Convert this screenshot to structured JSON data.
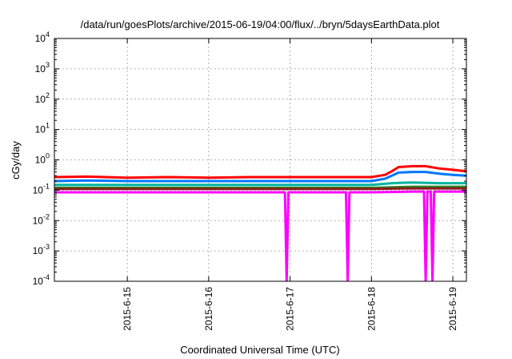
{
  "chart_data": {
    "type": "line",
    "title": "/data/run/goesPlots/archive/2015-06-19/04:00/flux/../bryn/5daysEarthData.plot",
    "xlabel": "Coordinated Universal Time (UTC)",
    "ylabel": "cGy/day",
    "yscale": "log",
    "ylim": [
      0.0001,
      10000
    ],
    "xlim": [
      "2015-06-14T02:30",
      "2015-06-19T04:00"
    ],
    "grid": true,
    "x_ticks": [
      "2015-6-15",
      "2015-6-16",
      "2015-6-17",
      "2015-6-18",
      "2015-6-19"
    ],
    "y_ticks": [
      {
        "base": "10",
        "exp": "-4",
        "value": 0.0001
      },
      {
        "base": "10",
        "exp": "-3",
        "value": 0.001
      },
      {
        "base": "10",
        "exp": "-2",
        "value": 0.01
      },
      {
        "base": "10",
        "exp": "-1",
        "value": 0.1
      },
      {
        "base": "10",
        "exp": "0",
        "value": 1
      },
      {
        "base": "10",
        "exp": "1",
        "value": 10
      },
      {
        "base": "10",
        "exp": "2",
        "value": 100
      },
      {
        "base": "10",
        "exp": "3",
        "value": 1000
      },
      {
        "base": "10",
        "exp": "4",
        "value": 10000
      }
    ],
    "series": [
      {
        "color": "#ff0000",
        "x": [
          "2015-06-14T02:30",
          "2015-06-14T12:00",
          "2015-06-15T00:00",
          "2015-06-15T12:00",
          "2015-06-16T00:00",
          "2015-06-16T12:00",
          "2015-06-17T00:00",
          "2015-06-17T12:00",
          "2015-06-18T00:00",
          "2015-06-18T04:00",
          "2015-06-18T06:00",
          "2015-06-18T08:00",
          "2015-06-18T12:00",
          "2015-06-18T16:00",
          "2015-06-18T20:00",
          "2015-06-19T00:00",
          "2015-06-19T04:00"
        ],
        "values": [
          0.27,
          0.28,
          0.26,
          0.27,
          0.26,
          0.27,
          0.27,
          0.27,
          0.27,
          0.32,
          0.42,
          0.58,
          0.62,
          0.62,
          0.52,
          0.47,
          0.42
        ]
      },
      {
        "color": "#0077ff",
        "x": [
          "2015-06-14T02:30",
          "2015-06-14T12:00",
          "2015-06-15T00:00",
          "2015-06-15T12:00",
          "2015-06-16T00:00",
          "2015-06-16T12:00",
          "2015-06-17T00:00",
          "2015-06-17T12:00",
          "2015-06-18T00:00",
          "2015-06-18T04:00",
          "2015-06-18T06:00",
          "2015-06-18T08:00",
          "2015-06-18T12:00",
          "2015-06-18T16:00",
          "2015-06-18T20:00",
          "2015-06-19T00:00",
          "2015-06-19T04:00"
        ],
        "values": [
          0.2,
          0.21,
          0.2,
          0.2,
          0.2,
          0.2,
          0.2,
          0.2,
          0.2,
          0.24,
          0.3,
          0.38,
          0.4,
          0.4,
          0.35,
          0.32,
          0.3
        ]
      },
      {
        "color": "#00b4a0",
        "x": [
          "2015-06-14T02:30",
          "2015-06-15T00:00",
          "2015-06-16T00:00",
          "2015-06-17T00:00",
          "2015-06-18T00:00",
          "2015-06-18T06:00",
          "2015-06-18T12:00",
          "2015-06-18T20:00",
          "2015-06-19T04:00"
        ],
        "values": [
          0.15,
          0.15,
          0.15,
          0.15,
          0.15,
          0.17,
          0.18,
          0.17,
          0.17
        ]
      },
      {
        "color": "#228b22",
        "x": [
          "2015-06-14T02:30",
          "2015-06-15T00:00",
          "2015-06-16T00:00",
          "2015-06-17T00:00",
          "2015-06-18T00:00",
          "2015-06-18T12:00",
          "2015-06-19T04:00"
        ],
        "values": [
          0.12,
          0.12,
          0.12,
          0.12,
          0.12,
          0.13,
          0.13
        ]
      },
      {
        "color": "#8b1a1a",
        "x": [
          "2015-06-14T02:30",
          "2015-06-15T00:00",
          "2015-06-16T00:00",
          "2015-06-17T00:00",
          "2015-06-18T00:00",
          "2015-06-18T12:00",
          "2015-06-19T04:00"
        ],
        "values": [
          0.11,
          0.11,
          0.11,
          0.11,
          0.11,
          0.115,
          0.115
        ]
      },
      {
        "color": "#ff00ff",
        "x": [
          "2015-06-14T02:30",
          "2015-06-15T00:00",
          "2015-06-15T12:00",
          "2015-06-16T00:00",
          "2015-06-16T22:30",
          "2015-06-16T23:00",
          "2015-06-16T23:30",
          "2015-06-17T12:00",
          "2015-06-17T16:30",
          "2015-06-17T17:00",
          "2015-06-17T17:30",
          "2015-06-18T00:00",
          "2015-06-18T12:00",
          "2015-06-18T15:30",
          "2015-06-18T16:00",
          "2015-06-18T16:30",
          "2015-06-18T17:30",
          "2015-06-18T18:00",
          "2015-06-18T18:30",
          "2015-06-19T04:00"
        ],
        "values": [
          0.085,
          0.085,
          0.085,
          0.085,
          0.085,
          0.0001,
          0.085,
          0.085,
          0.085,
          0.0001,
          0.085,
          0.085,
          0.09,
          0.09,
          0.0001,
          0.09,
          0.09,
          0.0001,
          0.09,
          0.09
        ]
      }
    ]
  }
}
